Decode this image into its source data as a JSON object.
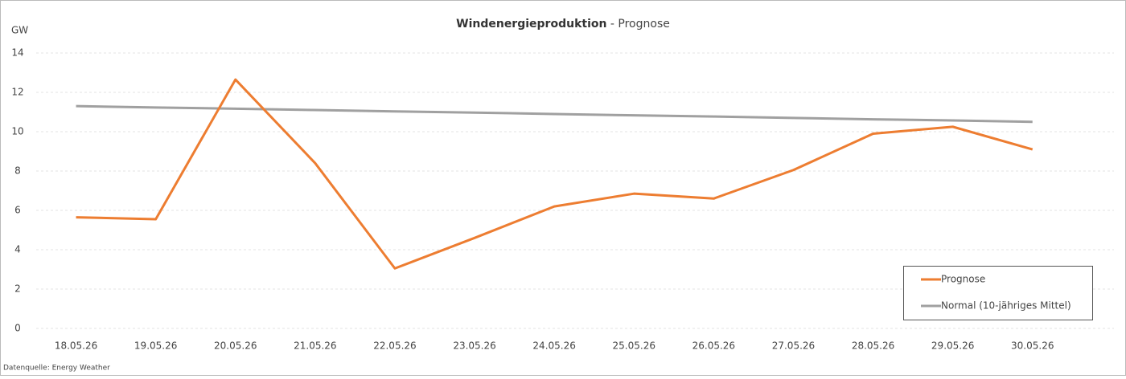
{
  "chart_data": {
    "type": "line",
    "title": "Windenergieproduktion",
    "title_suffix": "- Prognose",
    "y_axis_label": "GW",
    "source": "Datenquelle: Energy Weather",
    "categories": [
      "18.05.26",
      "19.05.26",
      "20.05.26",
      "21.05.26",
      "22.05.26",
      "23.05.26",
      "24.05.26",
      "25.05.26",
      "26.05.26",
      "27.05.26",
      "28.05.26",
      "29.05.26",
      "30.05.26"
    ],
    "series": [
      {
        "name": "Prognose",
        "color": "#ed7d31",
        "values": [
          5.65,
          5.55,
          12.65,
          8.4,
          3.05,
          4.6,
          6.2,
          6.85,
          6.6,
          8.05,
          9.9,
          10.25,
          9.1
        ]
      },
      {
        "name": "Normal (10-jähriges Mittel)",
        "color": "#a0a0a0",
        "values": [
          11.3,
          11.23,
          11.17,
          11.1,
          11.03,
          10.97,
          10.9,
          10.83,
          10.77,
          10.7,
          10.63,
          10.57,
          10.5
        ]
      }
    ],
    "ylim": [
      0,
      14
    ],
    "yticks": [
      0,
      2,
      4,
      6,
      8,
      10,
      12,
      14
    ],
    "grid": true,
    "legend": "lower right"
  }
}
